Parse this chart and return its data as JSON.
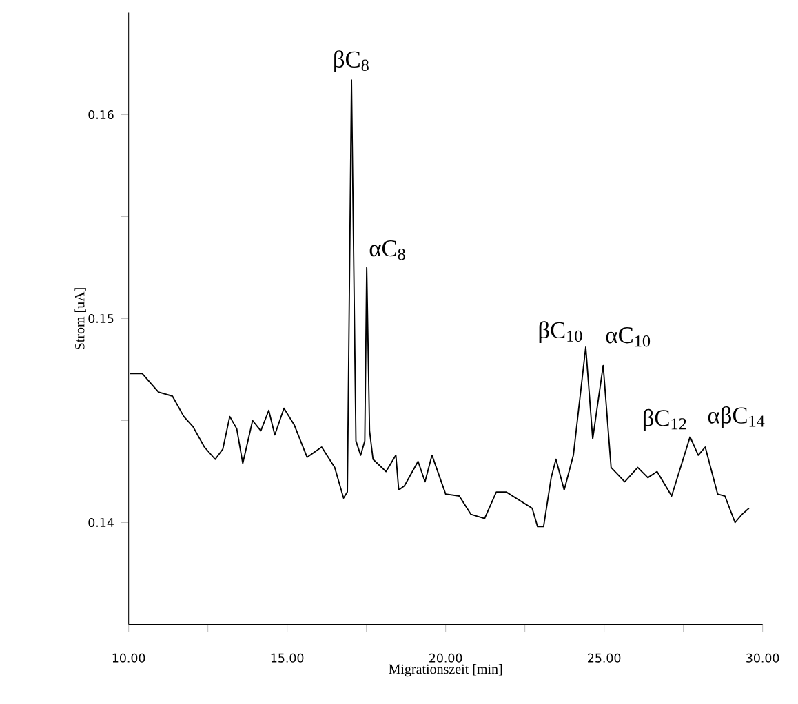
{
  "chart_data": {
    "type": "line",
    "xlabel": "Migrationszeit [min]",
    "ylabel": "Strom [uA]",
    "xlim": [
      10,
      30
    ],
    "ylim": [
      0.135,
      0.165
    ],
    "xticks": [
      {
        "value": 10,
        "label": "10.00"
      },
      {
        "value": 12.5,
        "label": null
      },
      {
        "value": 15,
        "label": "15.00"
      },
      {
        "value": 17.5,
        "label": null
      },
      {
        "value": 20,
        "label": "20.00"
      },
      {
        "value": 22.5,
        "label": null
      },
      {
        "value": 25,
        "label": "25.00"
      },
      {
        "value": 27.5,
        "label": null
      },
      {
        "value": 30,
        "label": "30.00"
      }
    ],
    "yticks": [
      {
        "value": 0.14,
        "label": "0.14"
      },
      {
        "value": 0.145,
        "label": null
      },
      {
        "value": 0.15,
        "label": "0.15"
      },
      {
        "value": 0.155,
        "label": null
      },
      {
        "value": 0.16,
        "label": "0.16"
      }
    ],
    "series": [
      {
        "color": "#000000",
        "x": [
          10.03,
          10.43,
          10.94,
          11.38,
          11.74,
          12.03,
          12.39,
          12.73,
          12.97,
          13.19,
          13.41,
          13.6,
          13.91,
          14.17,
          14.42,
          14.61,
          14.9,
          15.22,
          15.63,
          16.09,
          16.5,
          16.78,
          16.9,
          17.03,
          17.17,
          17.32,
          17.45,
          17.51,
          17.6,
          17.71,
          18.12,
          18.43,
          18.52,
          18.7,
          19.13,
          19.35,
          19.57,
          20.0,
          20.43,
          20.8,
          21.23,
          21.6,
          21.91,
          22.32,
          22.73,
          22.9,
          23.09,
          23.33,
          23.48,
          23.74,
          24.03,
          24.42,
          24.64,
          24.97,
          25.22,
          25.65,
          26.06,
          26.38,
          26.67,
          27.13,
          27.71,
          27.97,
          28.19,
          28.58,
          28.81,
          29.13,
          29.35,
          29.57
        ],
        "values": [
          0.1473,
          0.1473,
          0.1464,
          0.1462,
          0.1452,
          0.1447,
          0.1437,
          0.1431,
          0.1436,
          0.1452,
          0.1446,
          0.1429,
          0.145,
          0.1445,
          0.1455,
          0.1443,
          0.1456,
          0.1448,
          0.1432,
          0.1437,
          0.1427,
          0.1412,
          0.1415,
          0.1617,
          0.144,
          0.1433,
          0.144,
          0.1525,
          0.1445,
          0.1431,
          0.1425,
          0.1433,
          0.1416,
          0.1418,
          0.143,
          0.142,
          0.1433,
          0.1414,
          0.1413,
          0.1404,
          0.1402,
          0.1415,
          0.1415,
          0.1411,
          0.1407,
          0.1398,
          0.1398,
          0.1422,
          0.1431,
          0.1416,
          0.1433,
          0.1486,
          0.1441,
          0.1477,
          0.1427,
          0.142,
          0.1427,
          0.1422,
          0.1425,
          0.1413,
          0.1442,
          0.1433,
          0.1437,
          0.1414,
          0.1413,
          0.14,
          0.1404,
          0.1407
        ]
      }
    ],
    "annotations": [
      {
        "text": "βC$_{8}$",
        "x": 17.03,
        "y": 0.1617
      },
      {
        "text": "αC$_{8}$",
        "x": 17.51,
        "y": 0.1525
      },
      {
        "text": "βC$_{10}$",
        "x": 24.42,
        "y": 0.1486
      },
      {
        "text": "αC$_{10}$",
        "x": 24.97,
        "y": 0.1477
      },
      {
        "text": "βC$_{12}$",
        "x": 27.71,
        "y": 0.1442
      },
      {
        "text": "αβC$_{14}$",
        "x": 28.19,
        "y": 0.1437
      }
    ]
  }
}
